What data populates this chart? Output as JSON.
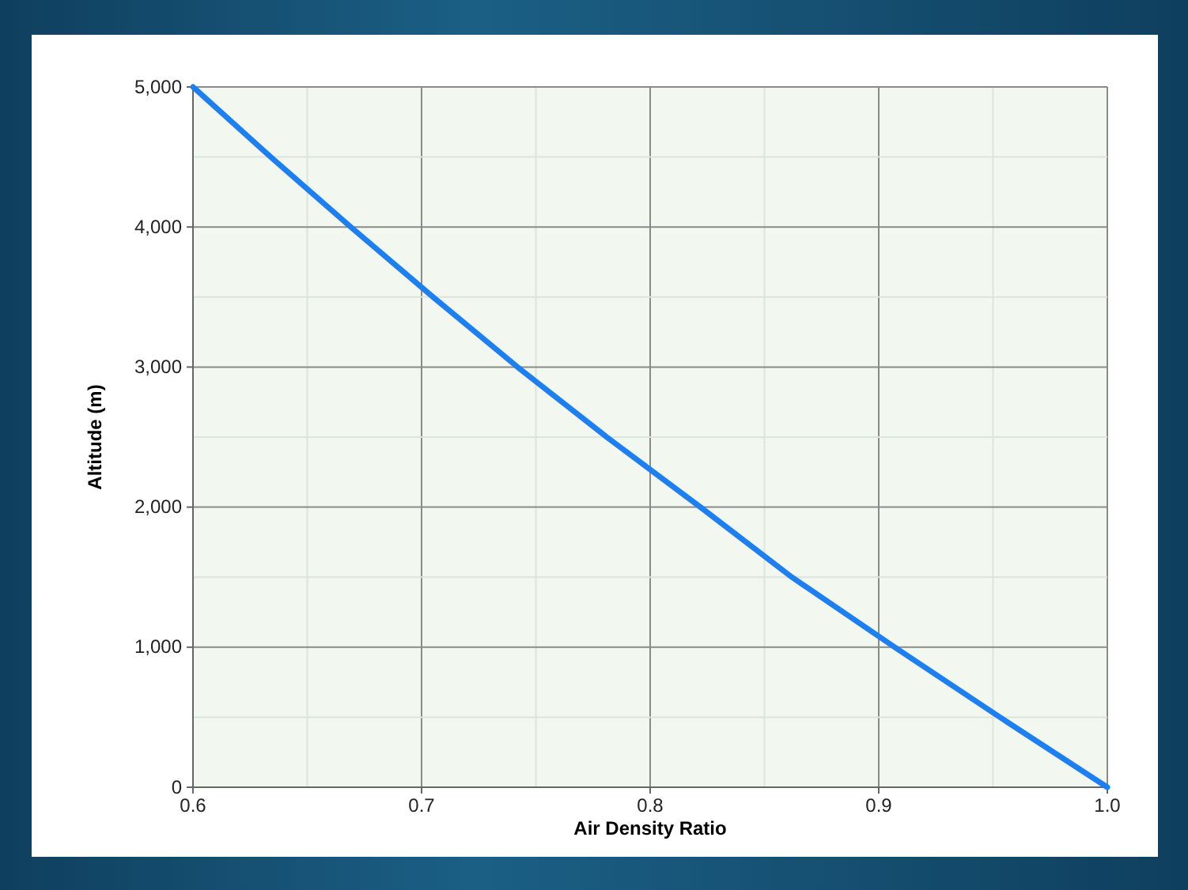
{
  "chart_data": {
    "type": "line",
    "xlabel": "Air Density Ratio",
    "ylabel": "Altitude (m)",
    "x": [
      1.0,
      0.953,
      0.907,
      0.862,
      0.822,
      0.781,
      0.742,
      0.705,
      0.669,
      0.634,
      0.6
    ],
    "series": [
      {
        "color": "#1e7ff0",
        "values": [
          0,
          500,
          1000,
          1500,
          2000,
          2500,
          3000,
          3500,
          4000,
          4500,
          5000
        ]
      }
    ],
    "xlim": [
      0.6,
      1.0
    ],
    "xticks": [
      0.6,
      0.7,
      0.8,
      0.9,
      {
        "value": 1.0,
        "label": "1.0"
      }
    ],
    "ylim": [
      0,
      5000
    ],
    "yticks": [
      {
        "value": 0,
        "label": "0"
      },
      {
        "value": 1000,
        "label": "1,000"
      },
      {
        "value": 2000,
        "label": "2,000"
      },
      {
        "value": 3000,
        "label": "3,000"
      },
      {
        "value": 4000,
        "label": "4,000"
      },
      {
        "value": 5000,
        "label": "5,000"
      }
    ],
    "grid": true,
    "marker": "none",
    "line_style": "solid"
  }
}
